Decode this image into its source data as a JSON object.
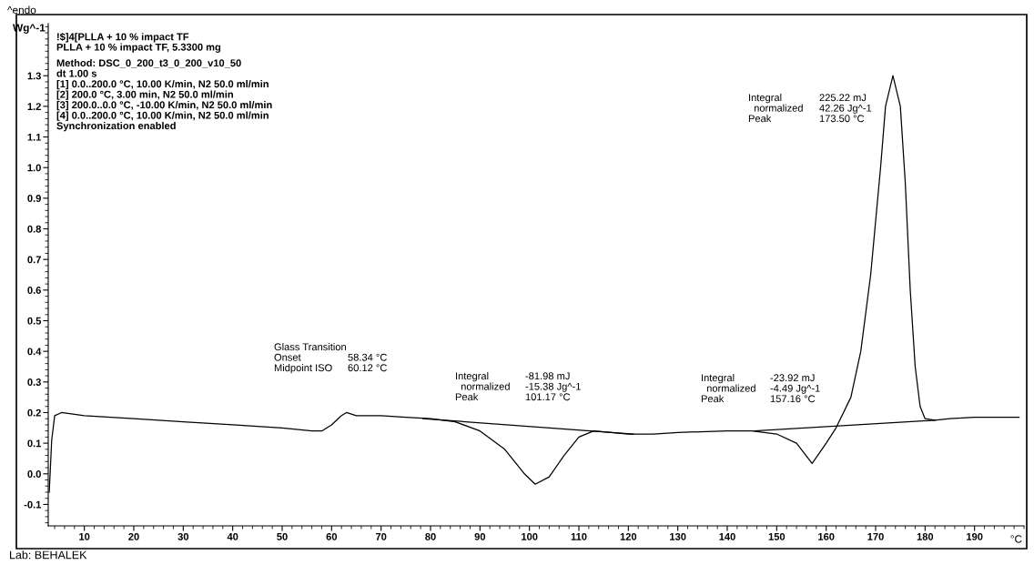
{
  "chart_data": {
    "type": "line",
    "title": "^endo",
    "ylabel": "Wg^-1",
    "xlabel": "°C",
    "x": [
      2.9,
      3.4,
      4.0,
      5.4,
      10,
      20,
      30,
      40,
      50,
      56,
      58,
      60,
      62,
      63,
      65,
      70,
      75,
      80,
      85,
      90,
      95,
      99,
      101.17,
      104,
      107,
      110,
      113,
      120,
      125,
      130,
      140,
      145,
      150,
      154,
      157.16,
      160,
      162,
      165,
      167,
      169,
      171,
      172,
      173.5,
      175,
      176,
      177,
      178,
      179,
      180,
      182,
      185,
      190,
      195,
      199
    ],
    "series": [
      {
        "color": "#000000",
        "values": [
          -0.06,
          0.11,
          0.19,
          0.2,
          0.19,
          0.18,
          0.17,
          0.16,
          0.15,
          0.14,
          0.14,
          0.16,
          0.19,
          0.2,
          0.19,
          0.19,
          0.185,
          0.18,
          0.17,
          0.14,
          0.08,
          0.0,
          -0.034,
          -0.01,
          0.06,
          0.12,
          0.14,
          0.13,
          0.13,
          0.135,
          0.14,
          0.14,
          0.13,
          0.1,
          0.034,
          0.1,
          0.15,
          0.25,
          0.4,
          0.65,
          1.0,
          1.2,
          1.3,
          1.2,
          0.95,
          0.6,
          0.35,
          0.22,
          0.18,
          0.175,
          0.18,
          0.185,
          0.185,
          0.185
        ]
      },
      {
        "type": "line",
        "color": "#000000",
        "x": [
          78.5,
          121
        ],
        "values": [
          0.18,
          0.13
        ]
      },
      {
        "type": "line",
        "color": "#000000",
        "x": [
          145.5,
          182
        ],
        "values": [
          0.14,
          0.175
        ]
      }
    ],
    "xlim": [
      2.7,
      200
    ],
    "ylim": [
      -0.17,
      1.47
    ],
    "xticks": [
      10,
      20,
      30,
      40,
      50,
      60,
      70,
      80,
      90,
      100,
      110,
      120,
      130,
      140,
      150,
      160,
      170,
      180,
      190
    ],
    "yticks": [
      -0.1,
      {
        "value": 0,
        "label": "0.0"
      },
      0.1,
      0.2,
      0.3,
      0.4,
      0.5,
      0.6,
      0.7,
      0.8,
      0.9,
      {
        "value": 1,
        "label": "1.0"
      },
      1.1,
      1.2,
      1.3
    ],
    "grid": false,
    "legend": false,
    "annotations": [
      "!$]4[PLLA + 10 % impact TF\nPLLA + 10 % impact TF, 5.3300 mg\n\nMethod: DSC_0_200_t3_0_200_v10_50\ndt 1.00 s\n[1] 0.0..200.0 °C, 10.00 K/min, N2 50.0 ml/min\n[2] 200.0 °C, 3.00 min, N2 50.0 ml/min\n[3] 200.0..0.0 °C, -10.00 K/min, N2 50.0 ml/min\n[4] 0.0..200.0 °C, 10.00 K/min, N2 50.0 ml/min\nSynchronization enabled",
      "Glass Transition\nOnset\t58.34 °C\nMidpoint ISO\t60.12 °C",
      "Integral\t-81.98 mJ\n  normalized\t-15.38 Jg^-1\nPeak\t101.17 °C",
      "Integral\t-23.92 mJ\n  normalized\t-4.49 Jg^-1\nPeak\t157.16 °C",
      "Integral\t225.22 mJ\n  normalized\t42.26 Jg^-1\nPeak\t173.50 °C",
      "Lab: BEHALEK"
    ]
  }
}
